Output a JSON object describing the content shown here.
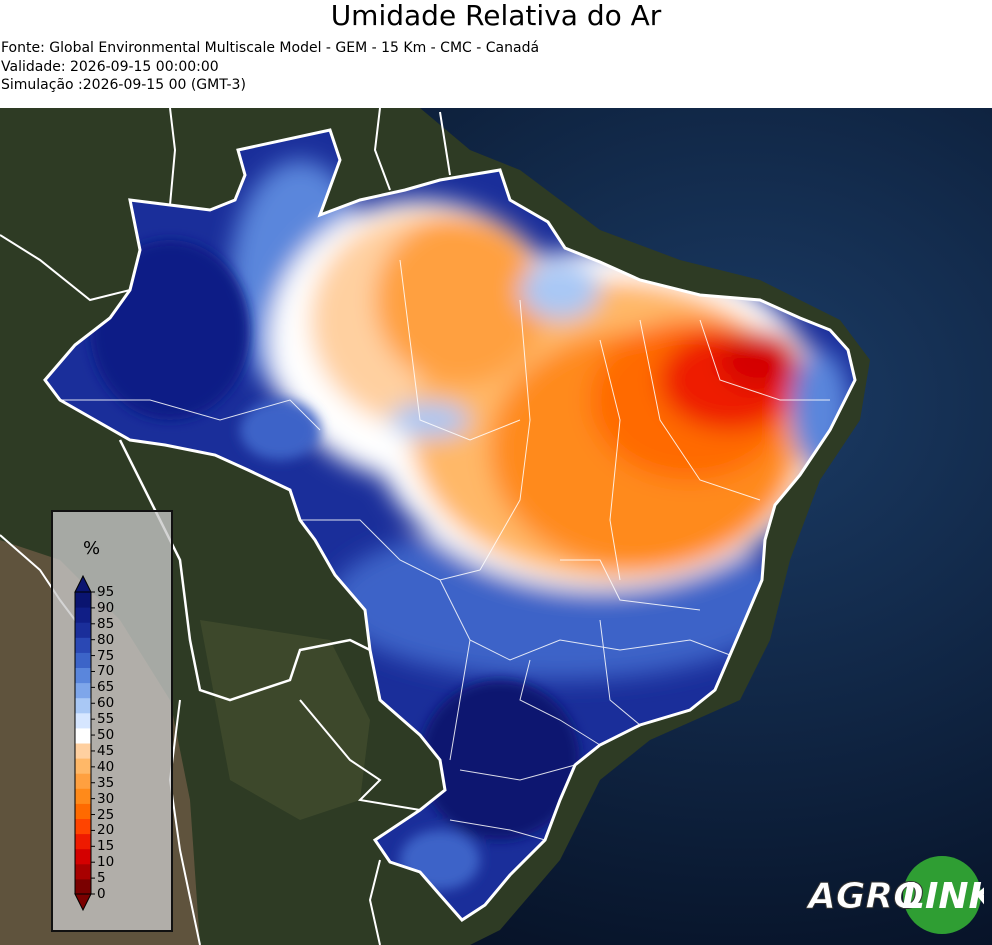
{
  "header": {
    "title": "Umidade Relativa do Ar",
    "source": "Fonte: Global Environmental Multiscale Model - GEM - 15 Km - CMC - Canadá",
    "validity": "Validade: 2026-09-15 00:00:00",
    "simulation": "Simulação :2026-09-15 00 (GMT-3)"
  },
  "legend": {
    "unit": "%",
    "ticks": [
      "95",
      "90",
      "85",
      "80",
      "75",
      "70",
      "65",
      "60",
      "55",
      "50",
      "45",
      "40",
      "35",
      "30",
      "25",
      "20",
      "15",
      "10",
      "5",
      "0"
    ],
    "colors": [
      "#7a0000",
      "#a80000",
      "#d40000",
      "#ee1a00",
      "#ff4400",
      "#ff6a00",
      "#ff8a1a",
      "#ffa040",
      "#ffb868",
      "#ffd0a0",
      "#ffffff",
      "#d6e6ff",
      "#a9c8f5",
      "#7ea6ea",
      "#5a86dc",
      "#3c64c8",
      "#2a48b4",
      "#1a2e9a",
      "#101e86",
      "#0a1470"
    ]
  },
  "logo": {
    "text_agro": "AGRO",
    "text_link": "LINK",
    "brand_green": "#2f9e33"
  },
  "colors": {
    "ocean": "#0a1a33",
    "land": "#2d3a22",
    "borders": "#ffffff"
  }
}
